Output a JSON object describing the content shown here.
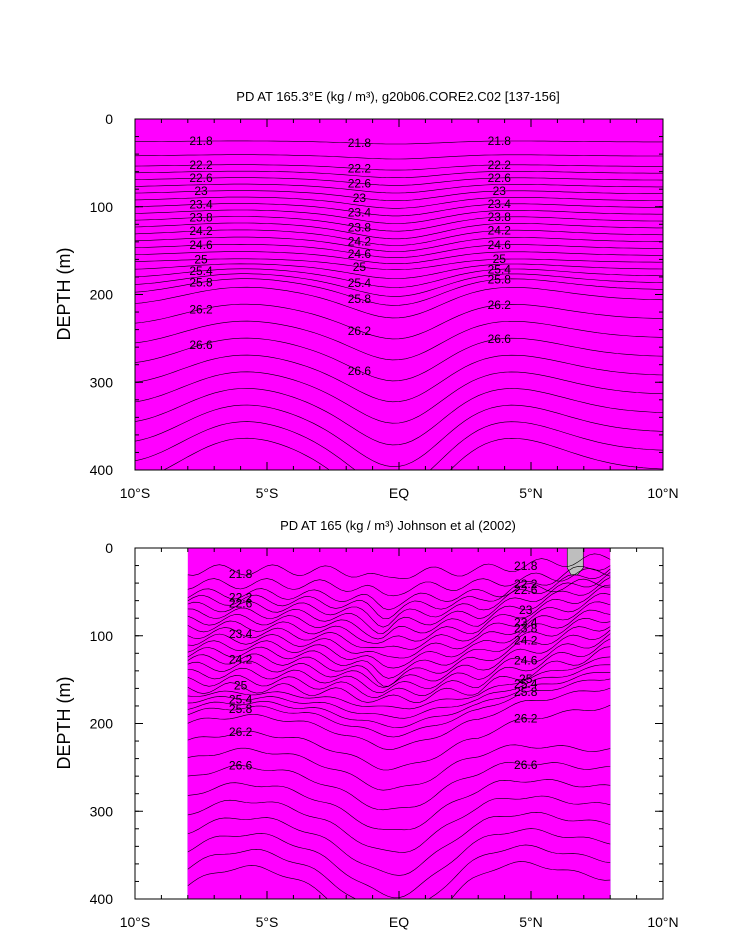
{
  "chart_data": [
    {
      "type": "heatmap",
      "title": "PD AT 165.3°E (kg / m³), g20b06.CORE2.C02 [137-156]",
      "ylabel": "DEPTH (m)",
      "xlabel": "",
      "x_ticks": [
        "10°S",
        "5°S",
        "EQ",
        "5°N",
        "10°N"
      ],
      "x_tick_values": [
        -10,
        -5,
        0,
        5,
        10
      ],
      "y_ticks": [
        "0",
        "100",
        "200",
        "300",
        "400"
      ],
      "y_tick_values": [
        0,
        100,
        200,
        300,
        400
      ],
      "xlim": [
        -10,
        10
      ],
      "ylim": [
        400,
        0
      ],
      "data_extent_x": [
        -10,
        10
      ],
      "contour_interval": 0.2,
      "contour_labels": [
        "21.8",
        "22.2",
        "22.6",
        "23",
        "23.4",
        "23.8",
        "24.2",
        "24.6",
        "25",
        "25.4",
        "25.8",
        "26.2",
        "26.6"
      ]
    },
    {
      "type": "heatmap",
      "title": "PD AT 165 (kg / m³) Johnson et al (2002)",
      "ylabel": "DEPTH (m)",
      "xlabel": "",
      "x_ticks": [
        "10°S",
        "5°S",
        "EQ",
        "5°N",
        "10°N"
      ],
      "x_tick_values": [
        -10,
        -5,
        0,
        5,
        10
      ],
      "y_ticks": [
        "0",
        "100",
        "200",
        "300",
        "400"
      ],
      "y_tick_values": [
        0,
        100,
        200,
        300,
        400
      ],
      "xlim": [
        -10,
        10
      ],
      "ylim": [
        400,
        0
      ],
      "data_extent_x": [
        -8,
        8
      ],
      "contour_interval": 0.2,
      "contour_labels": [
        "21.8",
        "22.2",
        "22.6",
        "23",
        "23.4",
        "23.8",
        "24.2",
        "24.6",
        "25",
        "25.4",
        "25.8",
        "26.2",
        "26.6"
      ]
    }
  ],
  "colors": {
    "ramp": [
      "#ff00ff",
      "#e600f0",
      "#cc00dd",
      "#a000d8",
      "#7a10e8",
      "#4b14f0",
      "#1e1ef5",
      "#0a46f0",
      "#0870f0",
      "#0a96f0",
      "#0ab8ee",
      "#14d2e8",
      "#1ee6d2",
      "#14e6a8",
      "#10d878",
      "#1ed03c",
      "#5ad820",
      "#9ae61c",
      "#d2f01c",
      "#ffff1e",
      "#ffe61e",
      "#ffcd28",
      "#ffb432",
      "#ff9b32",
      "#ff8228",
      "#ff6a1e",
      "#ff4614",
      "#f0280f",
      "#e6140a",
      "#d70f0a",
      "#c80a0a",
      "#b80808"
    ],
    "missing": "#bebebe"
  }
}
